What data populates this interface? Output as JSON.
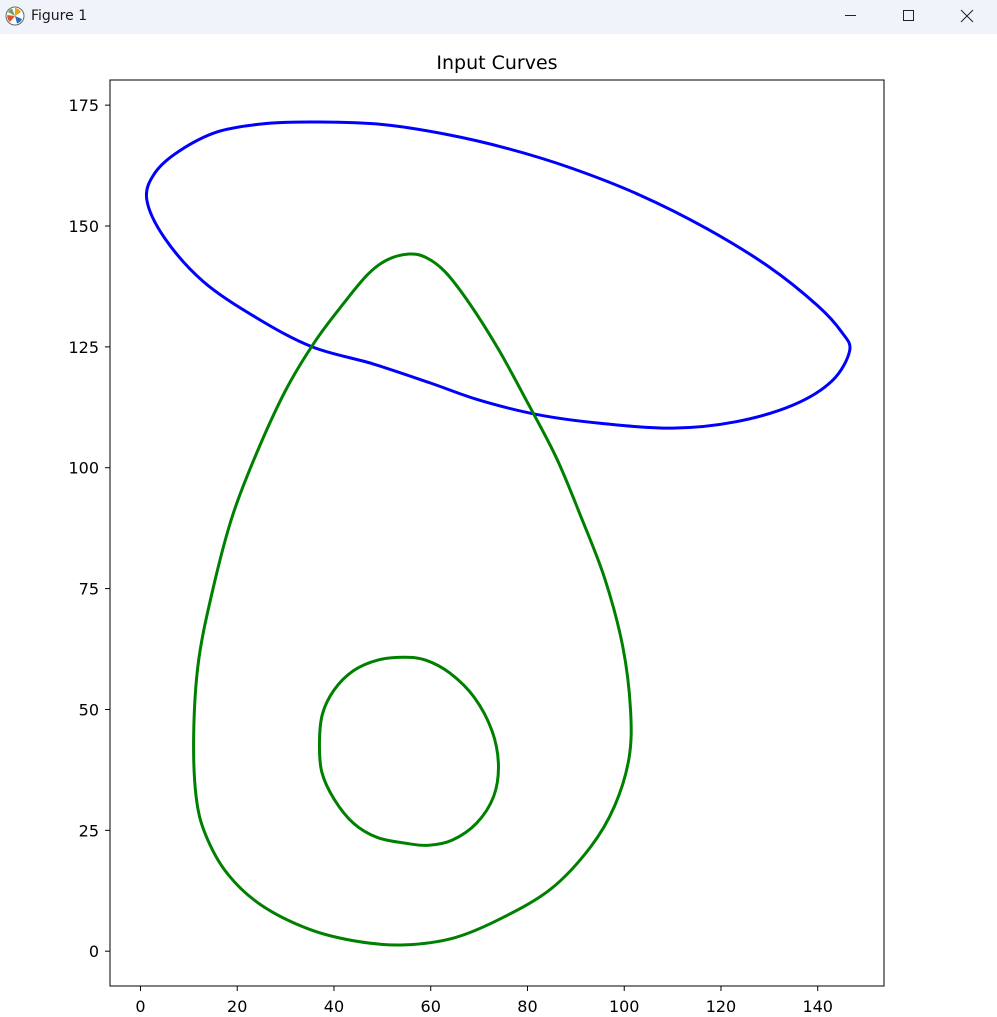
{
  "window": {
    "title": "Figure 1",
    "icons": {
      "app": "matplotlib-logo-icon",
      "minimize": "minimize-icon",
      "maximize": "maximize-icon",
      "close": "close-icon"
    }
  },
  "chart_data": {
    "type": "line",
    "title": "Input Curves",
    "xlabel": "",
    "ylabel": "",
    "xlim": [
      -6.3,
      153.7
    ],
    "ylim": [
      -7.2,
      180.2
    ],
    "xticks": [
      0,
      20,
      40,
      60,
      80,
      100,
      120,
      140
    ],
    "yticks": [
      0,
      25,
      50,
      75,
      100,
      125,
      150,
      175
    ],
    "grid": false,
    "legend": false,
    "series": [
      {
        "color": "#0000ff",
        "closed": true,
        "points": [
          [
            146.6,
            124.2
          ],
          [
            143,
            118
          ],
          [
            135,
            113
          ],
          [
            123,
            109.5
          ],
          [
            110,
            108.2
          ],
          [
            95,
            109.2
          ],
          [
            82,
            111
          ],
          [
            70,
            114
          ],
          [
            60,
            117.5
          ],
          [
            48,
            121.5
          ],
          [
            35.5,
            125
          ],
          [
            24,
            131
          ],
          [
            13,
            138.5
          ],
          [
            5,
            147.5
          ],
          [
            1.3,
            155.5
          ],
          [
            3,
            161
          ],
          [
            8,
            165.5
          ],
          [
            16,
            169.5
          ],
          [
            26,
            171.2
          ],
          [
            37,
            171.5
          ],
          [
            50,
            171
          ],
          [
            63,
            169
          ],
          [
            76,
            166
          ],
          [
            89,
            162
          ],
          [
            103,
            156.5
          ],
          [
            117,
            149.5
          ],
          [
            130,
            141.5
          ],
          [
            140,
            133.5
          ],
          [
            145,
            128
          ]
        ]
      },
      {
        "color": "#008000",
        "closed": true,
        "points": [
          [
            55.5,
            144.2
          ],
          [
            59,
            143.5
          ],
          [
            63,
            140.5
          ],
          [
            68,
            134
          ],
          [
            74,
            124.5
          ],
          [
            80,
            113.5
          ],
          [
            86,
            102
          ],
          [
            91,
            90
          ],
          [
            96,
            77
          ],
          [
            99.7,
            63
          ],
          [
            101.3,
            50
          ],
          [
            101,
            40
          ],
          [
            98,
            30
          ],
          [
            93,
            21.5
          ],
          [
            85,
            13
          ],
          [
            75,
            7
          ],
          [
            65,
            2.8
          ],
          [
            54.5,
            1.3
          ],
          [
            45,
            2
          ],
          [
            35,
            4.5
          ],
          [
            25,
            9.5
          ],
          [
            18,
            16
          ],
          [
            13.5,
            24
          ],
          [
            11.5,
            32
          ],
          [
            11,
            45
          ],
          [
            12,
            60
          ],
          [
            15,
            75
          ],
          [
            19,
            90
          ],
          [
            24,
            103
          ],
          [
            30,
            116
          ],
          [
            36,
            126
          ],
          [
            42,
            134
          ],
          [
            47,
            140
          ],
          [
            51,
            143
          ]
        ]
      },
      {
        "color": "#008000",
        "closed": true,
        "points": [
          [
            54.5,
            60.8
          ],
          [
            59,
            60.2
          ],
          [
            64,
            57.5
          ],
          [
            69,
            52.5
          ],
          [
            72.7,
            45.5
          ],
          [
            74,
            38.5
          ],
          [
            73,
            32
          ],
          [
            69.5,
            26.5
          ],
          [
            64.5,
            23
          ],
          [
            59.5,
            21.9
          ],
          [
            55,
            22.3
          ],
          [
            49,
            23.5
          ],
          [
            44,
            26.5
          ],
          [
            40,
            31.5
          ],
          [
            37.5,
            37
          ],
          [
            37,
            43
          ],
          [
            37.6,
            49
          ],
          [
            40,
            54
          ],
          [
            44,
            58
          ],
          [
            49,
            60.2
          ]
        ]
      }
    ]
  }
}
